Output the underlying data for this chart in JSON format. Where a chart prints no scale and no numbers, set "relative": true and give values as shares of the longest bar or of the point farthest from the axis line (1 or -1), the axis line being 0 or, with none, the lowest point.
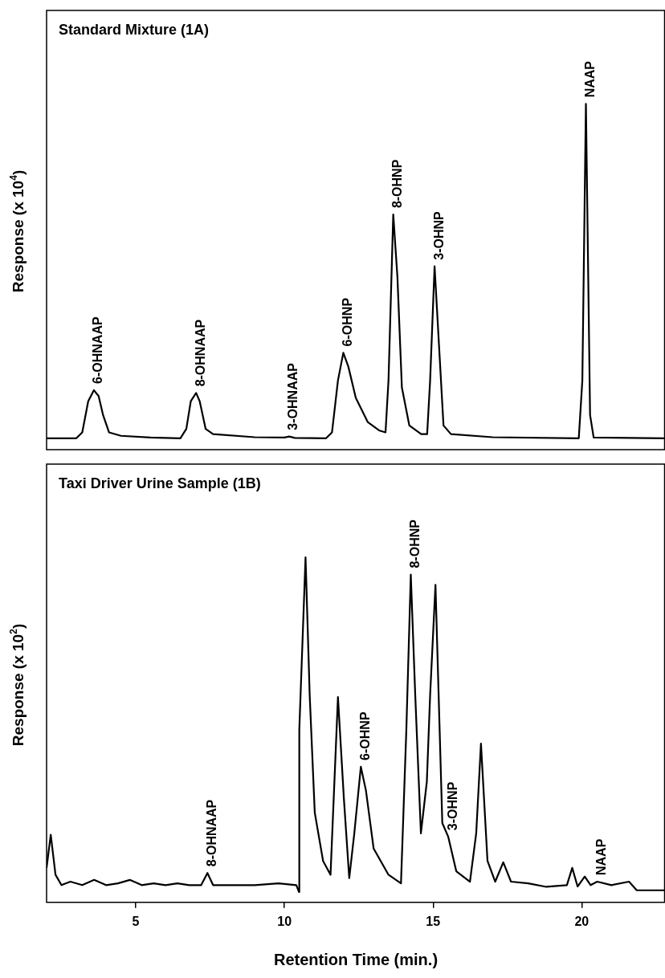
{
  "chart_data": [
    {
      "type": "line",
      "title": "Standard Mixture (1A)",
      "ylabel": "Response (x 10$^{4}$)",
      "relative": true,
      "color": "#000000",
      "xlim": [
        2,
        22.8
      ],
      "tick_labels": false,
      "x": [
        2.0,
        3.0,
        3.2,
        3.4,
        3.59,
        3.75,
        3.9,
        4.1,
        4.5,
        5.5,
        6.5,
        6.7,
        6.85,
        7.03,
        7.15,
        7.35,
        7.6,
        9.0,
        10.0,
        10.16,
        10.35,
        11.4,
        11.6,
        11.8,
        11.98,
        12.15,
        12.4,
        12.8,
        13.2,
        13.4,
        13.5,
        13.66,
        13.8,
        13.95,
        14.2,
        14.6,
        14.8,
        14.9,
        15.05,
        15.2,
        15.35,
        15.6,
        17.0,
        19.9,
        20.02,
        20.14,
        20.28,
        20.4,
        22.8
      ],
      "values": [
        0.033,
        0.033,
        0.05,
        0.14,
        0.172,
        0.155,
        0.1,
        0.05,
        0.04,
        0.035,
        0.033,
        0.06,
        0.14,
        0.164,
        0.14,
        0.06,
        0.045,
        0.036,
        0.035,
        0.038,
        0.034,
        0.033,
        0.05,
        0.2,
        0.28,
        0.24,
        0.15,
        0.08,
        0.055,
        0.05,
        0.2,
        0.68,
        0.5,
        0.18,
        0.07,
        0.045,
        0.045,
        0.2,
        0.53,
        0.3,
        0.07,
        0.045,
        0.036,
        0.033,
        0.2,
        1,
        0.1,
        0.035,
        0.033
      ],
      "annotations": [
        {
          "text": "6-OHNAAP",
          "x": 3.59,
          "y": 0.172
        },
        {
          "text": "8-OHNAAP",
          "x": 7.03,
          "y": 0.164
        },
        {
          "text": "3-OHNAAP",
          "x": 10.16,
          "y": 0.038
        },
        {
          "text": "6-OHNP",
          "x": 11.98,
          "y": 0.28
        },
        {
          "text": "8-OHNP",
          "x": 13.66,
          "y": 0.68
        },
        {
          "text": "3-OHNP",
          "x": 15.05,
          "y": 0.53
        },
        {
          "text": "NAAP",
          "x": 20.14,
          "y": 1
        }
      ]
    },
    {
      "type": "line",
      "title": "Taxi Driver Urine Sample (1B)",
      "xlabel": "Retention Time (min.)",
      "ylabel": "Response (x 10$^{2}$)",
      "relative": true,
      "color": "#000000",
      "xlim": [
        2,
        22.8
      ],
      "xticks": [
        5,
        10,
        15,
        20
      ],
      "x": [
        2.0,
        2.14,
        2.3,
        2.5,
        2.8,
        3.2,
        3.6,
        4.0,
        4.4,
        4.8,
        5.2,
        5.6,
        6.0,
        6.4,
        6.8,
        7.2,
        7.41,
        7.6,
        8.0,
        9.0,
        9.8,
        10.4,
        10.49,
        10.5,
        10.71,
        10.85,
        11.02,
        11.3,
        11.55,
        11.8,
        12.0,
        12.18,
        12.35,
        12.57,
        12.74,
        13.0,
        13.5,
        13.92,
        14.1,
        14.25,
        14.4,
        14.59,
        14.79,
        14.9,
        15.08,
        15.31,
        15.51,
        15.78,
        16.24,
        16.45,
        16.61,
        16.83,
        17.09,
        17.36,
        17.62,
        18.2,
        18.81,
        19.5,
        19.68,
        19.86,
        20.1,
        20.3,
        20.52,
        21.0,
        21.59,
        21.85,
        22.8
      ],
      "values": [
        0.1,
        0.196,
        0.08,
        0.05,
        0.06,
        0.05,
        0.065,
        0.05,
        0.055,
        0.065,
        0.05,
        0.055,
        0.05,
        0.055,
        0.05,
        0.05,
        0.085,
        0.05,
        0.05,
        0.05,
        0.055,
        0.05,
        0.03,
        0.5,
        1.0,
        0.6,
        0.26,
        0.12,
        0.08,
        0.595,
        0.3,
        0.07,
        0.2,
        0.393,
        0.325,
        0.156,
        0.08,
        0.055,
        0.5,
        0.95,
        0.6,
        0.2,
        0.35,
        0.6,
        0.92,
        0.23,
        0.19,
        0.09,
        0.06,
        0.2,
        0.46,
        0.12,
        0.06,
        0.116,
        0.06,
        0.055,
        0.045,
        0.05,
        0.1,
        0.046,
        0.075,
        0.05,
        0.06,
        0.05,
        0.06,
        0.035,
        0.035
      ],
      "annotations": [
        {
          "text": "8-OHNAAP",
          "x": 7.41,
          "y": 0.085
        },
        {
          "text": "6-OHNP",
          "x": 12.57,
          "y": 0.393
        },
        {
          "text": "8-OHNP",
          "x": 14.25,
          "y": 0.95
        },
        {
          "text": "3-OHNP",
          "x": 15.51,
          "y": 0.19
        },
        {
          "text": "NAAP",
          "x": 20.52,
          "y": 0.06
        }
      ]
    }
  ]
}
